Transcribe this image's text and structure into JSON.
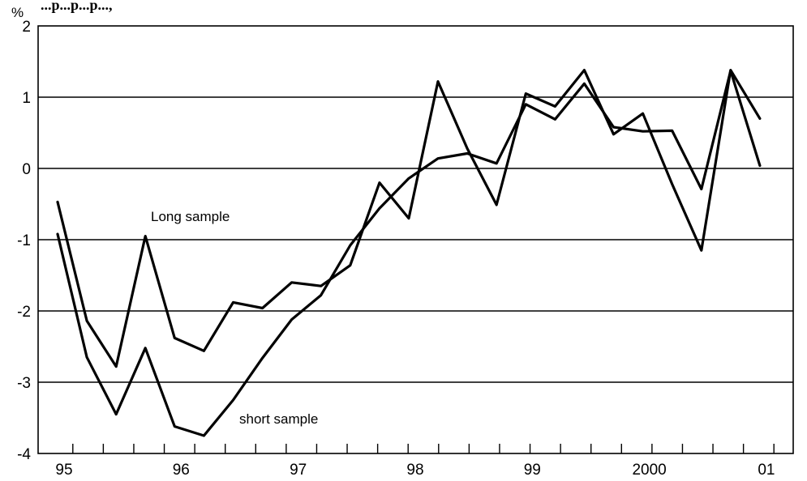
{
  "chart_data": {
    "type": "line",
    "title_fragment": "...p...p...p...,",
    "y_unit": "%",
    "ylim": [
      -4,
      2
    ],
    "y_ticks": [
      2,
      1,
      0,
      -1,
      -2,
      -3,
      -4
    ],
    "y_tick_labels": [
      "2",
      "1",
      "0",
      "-1",
      "-2",
      "-3",
      "-4"
    ],
    "x_tick_labels": [
      "95",
      "96",
      "97",
      "98",
      "99",
      "2000",
      "01"
    ],
    "x_label_years": [
      1995,
      1996,
      1997,
      1998,
      1999,
      2000,
      2001
    ],
    "x_range": [
      1995.0,
      2001.25
    ],
    "grid": true,
    "series": [
      {
        "name": "Long sample",
        "x": [
          1995.0,
          1995.25,
          1995.5,
          1995.75,
          1996.0,
          1996.25,
          1996.5,
          1996.75,
          1997.0,
          1997.25,
          1997.5,
          1997.75,
          1998.0,
          1998.25,
          1998.5,
          1998.75,
          1999.0,
          1999.25,
          1999.5,
          1999.75,
          2000.0,
          2000.25,
          2000.5,
          2000.75,
          2001.0
        ],
        "values": [
          -0.47,
          -2.14,
          -2.78,
          -0.95,
          -2.38,
          -2.56,
          -1.88,
          -1.96,
          -1.6,
          -1.65,
          -1.36,
          -0.2,
          -0.7,
          1.22,
          0.28,
          -0.51,
          1.05,
          0.87,
          1.38,
          0.48,
          0.77,
          -0.22,
          -1.15,
          1.38,
          0.7
        ]
      },
      {
        "name": "short sample",
        "x": [
          1995.0,
          1995.25,
          1995.5,
          1995.75,
          1996.0,
          1996.25,
          1996.5,
          1996.75,
          1997.0,
          1997.25,
          1997.5,
          1997.75,
          1998.0,
          1998.25,
          1998.5,
          1998.75,
          1999.0,
          1999.25,
          1999.5,
          1999.75,
          2000.0,
          2000.25,
          2000.5,
          2000.75,
          2001.0
        ],
        "values": [
          -0.92,
          -2.65,
          -3.45,
          -2.52,
          -3.62,
          -3.75,
          -3.25,
          -2.66,
          -2.12,
          -1.78,
          -1.08,
          -0.56,
          -0.14,
          0.14,
          0.21,
          0.07,
          0.9,
          0.69,
          1.19,
          0.58,
          0.52,
          0.53,
          -0.29,
          1.37,
          0.04
        ]
      }
    ],
    "annotations": [
      {
        "text": "Long sample",
        "series": "Long sample"
      },
      {
        "text": "short sample",
        "series": "short sample"
      }
    ]
  }
}
